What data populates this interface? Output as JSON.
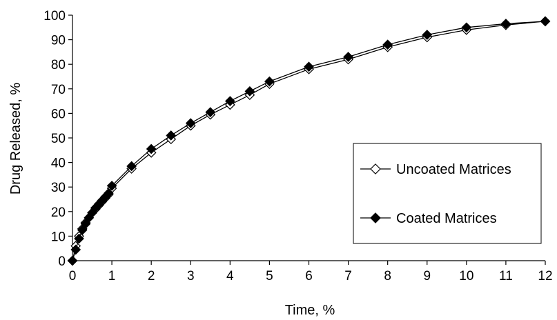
{
  "chart_data": {
    "type": "line",
    "title": "",
    "xlabel": "Time, %",
    "ylabel": "Drug Released, %",
    "xlim": [
      0,
      12
    ],
    "ylim": [
      0,
      100
    ],
    "xticks": [
      "0",
      "1",
      "2",
      "3",
      "4",
      "5",
      "6",
      "7",
      "8",
      "9",
      "10",
      "11",
      "12"
    ],
    "yticks": [
      "0",
      "10",
      "20",
      "30",
      "40",
      "50",
      "60",
      "70",
      "80",
      "90",
      "100"
    ],
    "grid": false,
    "legend_position": "right",
    "series": [
      {
        "name": "Uncoated Matrices",
        "marker": "diamond-open",
        "color": "#000000",
        "x": [
          0,
          0.083,
          0.167,
          0.25,
          0.333,
          0.417,
          0.5,
          0.583,
          0.667,
          0.75,
          0.833,
          0.917,
          1,
          1.5,
          2,
          2.5,
          3,
          3.5,
          4,
          4.5,
          5,
          6,
          7,
          8,
          9,
          10,
          11,
          12
        ],
        "y": [
          0,
          6,
          10,
          13,
          15.5,
          17.5,
          19.5,
          21,
          22.5,
          24,
          25.5,
          27,
          29.5,
          37.5,
          44,
          49.5,
          55,
          59.5,
          63.5,
          67.5,
          72,
          78,
          82,
          87,
          91,
          94,
          96,
          97.5
        ]
      },
      {
        "name": "Coated Matrices",
        "marker": "diamond-filled",
        "color": "#000000",
        "x": [
          0,
          0.083,
          0.167,
          0.25,
          0.333,
          0.417,
          0.5,
          0.583,
          0.667,
          0.75,
          0.833,
          0.917,
          1,
          1.5,
          2,
          2.5,
          3,
          3.5,
          4,
          4.5,
          5,
          6,
          7,
          8,
          9,
          10,
          11,
          12
        ],
        "y": [
          0,
          4.5,
          9,
          12.5,
          15,
          17.5,
          19.5,
          21.5,
          23,
          24.5,
          26,
          27.5,
          30.5,
          38.5,
          45.5,
          51,
          56,
          60.5,
          65,
          69,
          73,
          79,
          83,
          88,
          92,
          95,
          96.5,
          97.5
        ]
      }
    ]
  }
}
